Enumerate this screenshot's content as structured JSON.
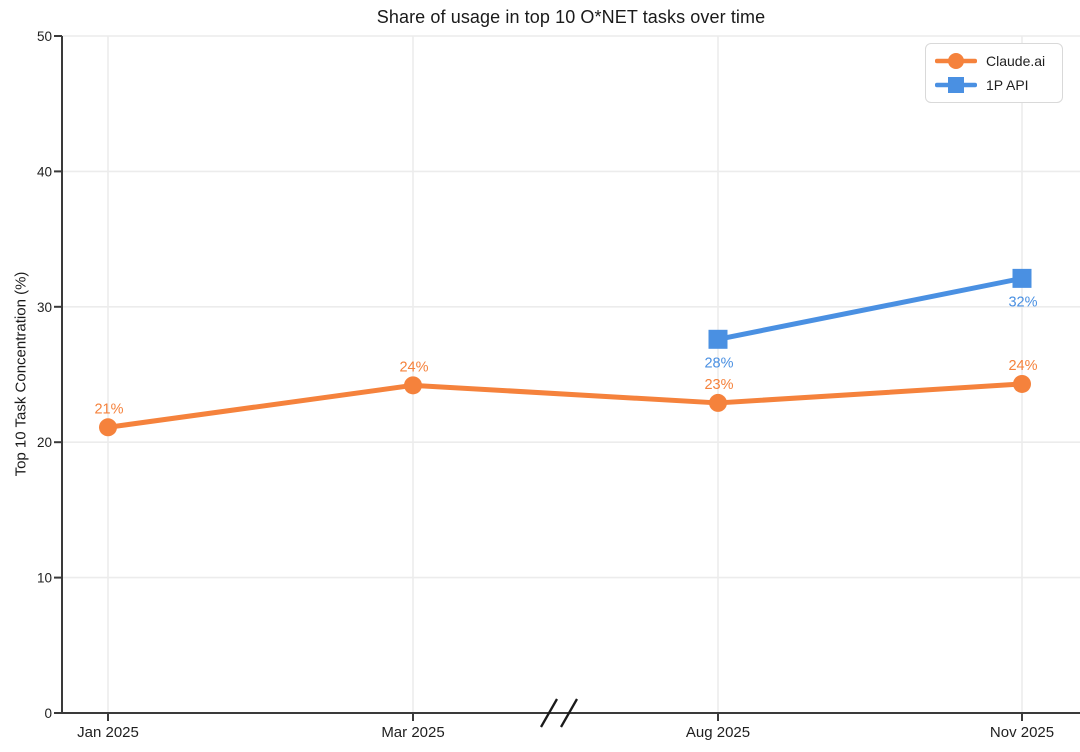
{
  "chart_data": {
    "type": "line",
    "title": "Share of usage in top 10 O*NET tasks over time",
    "ylabel": "Top 10 Task Concentration (%)",
    "xlabel": "",
    "categories": [
      "Jan 2025",
      "Mar 2025",
      "Aug 2025",
      "Nov 2025"
    ],
    "ylim": [
      0,
      50
    ],
    "yticks": [
      0,
      10,
      20,
      30,
      40,
      50
    ],
    "grid": true,
    "legend_position": "upper right",
    "x_axis_break": {
      "present": true,
      "between": [
        "Mar 2025",
        "Aug 2025"
      ]
    },
    "series": [
      {
        "name": "Claude.ai",
        "color": "#F5823C",
        "marker": "circle",
        "values": [
          21.1,
          24.2,
          22.9,
          24.3
        ],
        "labels": [
          "21%",
          "24%",
          "23%",
          "24%"
        ],
        "label_position": "above"
      },
      {
        "name": "1P API",
        "color": "#4A90E2",
        "marker": "square",
        "values": [
          null,
          null,
          27.6,
          32.1
        ],
        "labels": [
          null,
          null,
          "28%",
          "32%"
        ],
        "label_position": "below"
      }
    ],
    "colors": {
      "grid": "#ECECEC",
      "axis": "#3A3A3A",
      "tick_text": "#1F1F1F"
    }
  }
}
